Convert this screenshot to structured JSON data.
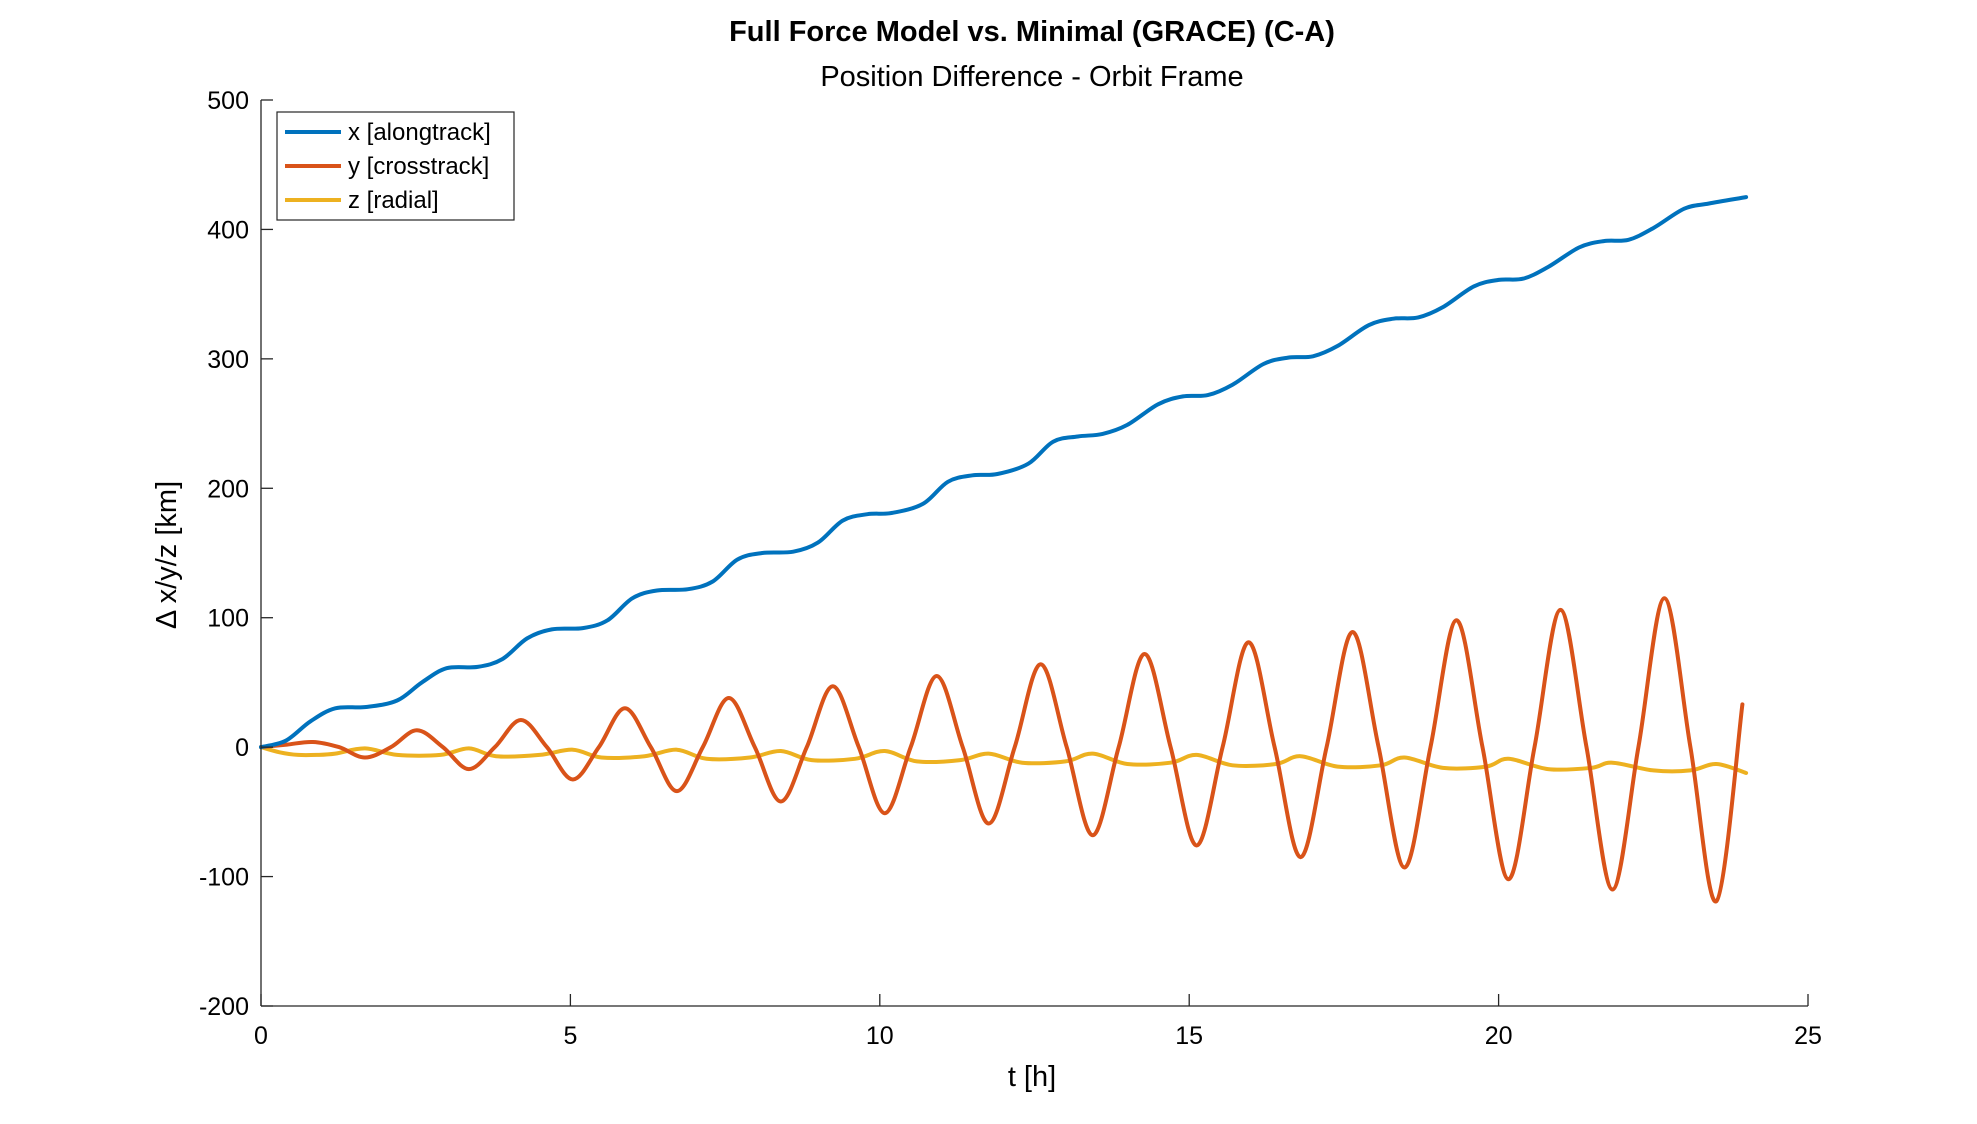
{
  "chart_data": {
    "type": "line",
    "title": "Full Force Model vs. Minimal (GRACE) (C-A)",
    "subtitle": "Position Difference - Orbit Frame",
    "xlabel": "t [h]",
    "ylabel": "Δ x/y/z [km]",
    "xlim": [
      0,
      25
    ],
    "ylim": [
      -200,
      500
    ],
    "xticks": [
      0,
      5,
      10,
      15,
      20,
      25
    ],
    "yticks": [
      -200,
      -100,
      0,
      100,
      200,
      300,
      400,
      500
    ],
    "grid": false,
    "legend_position": "top-left",
    "series": [
      {
        "name": "x [alongtrack]",
        "color": "#0072BD",
        "x": [
          0,
          0.4,
          0.8,
          1.2,
          1.7,
          2.2,
          2.6,
          3.0,
          3.5,
          3.9,
          4.3,
          4.7,
          5.2,
          5.6,
          6.0,
          6.4,
          6.9,
          7.3,
          7.7,
          8.1,
          8.6,
          9.0,
          9.4,
          9.8,
          10.2,
          10.7,
          11.1,
          11.5,
          11.9,
          12.4,
          12.8,
          13.2,
          13.6,
          14.0,
          14.5,
          14.9,
          15.3,
          15.7,
          16.2,
          16.6,
          17.0,
          17.4,
          17.9,
          18.3,
          18.7,
          19.1,
          19.6,
          20.0,
          20.4,
          20.8,
          21.3,
          21.7,
          22.1,
          22.5,
          23.0,
          23.4,
          24.0
        ],
        "y": [
          0,
          5,
          20,
          30,
          31,
          36,
          50,
          61,
          62,
          68,
          84,
          91,
          92,
          98,
          115,
          121,
          122,
          128,
          145,
          150,
          151,
          158,
          175,
          180,
          181,
          188,
          205,
          210,
          211,
          219,
          236,
          240,
          242,
          249,
          265,
          271,
          272,
          280,
          296,
          301,
          302,
          310,
          326,
          331,
          332,
          340,
          356,
          361,
          362,
          371,
          386,
          391,
          392,
          401,
          416,
          420,
          425
        ]
      },
      {
        "name": "y [crosstrack]",
        "color": "#D95319",
        "x": [
          0,
          0.42,
          0.84,
          1.26,
          1.68,
          2.1,
          2.52,
          2.94,
          3.36,
          3.78,
          4.2,
          4.62,
          5.04,
          5.46,
          5.88,
          6.3,
          6.72,
          7.14,
          7.56,
          7.98,
          8.4,
          8.82,
          9.24,
          9.66,
          10.08,
          10.5,
          10.92,
          11.34,
          11.76,
          12.18,
          12.6,
          13.02,
          13.44,
          13.86,
          14.28,
          14.7,
          15.12,
          15.54,
          15.96,
          16.38,
          16.8,
          17.22,
          17.64,
          18.06,
          18.48,
          18.9,
          19.32,
          19.74,
          20.16,
          20.58,
          21.0,
          21.42,
          21.84,
          22.26,
          22.68,
          23.1,
          23.52,
          23.94
        ],
        "y": [
          0,
          2,
          4,
          0,
          -8,
          0,
          13,
          0,
          -17,
          0,
          21,
          0,
          -25,
          0,
          30,
          0,
          -34,
          0,
          38,
          0,
          -42,
          0,
          47,
          0,
          -51,
          0,
          55,
          0,
          -59,
          0,
          64,
          0,
          -68,
          0,
          72,
          0,
          -76,
          0,
          81,
          0,
          -85,
          0,
          89,
          0,
          -93,
          0,
          98,
          0,
          -102,
          0,
          106,
          0,
          -110,
          0,
          115,
          0,
          -119,
          33
        ]
      },
      {
        "name": "z [radial]",
        "color": "#EDB120",
        "x": [
          0,
          0.3,
          0.6,
          0.9,
          1.2,
          1.68,
          2.2,
          2.9,
          3.36,
          3.8,
          4.5,
          5.04,
          5.5,
          6.2,
          6.72,
          7.2,
          7.9,
          8.4,
          8.9,
          9.6,
          10.08,
          10.6,
          11.3,
          11.76,
          12.3,
          13.0,
          13.44,
          14.0,
          14.7,
          15.12,
          15.7,
          16.4,
          16.8,
          17.4,
          18.1,
          18.48,
          19.1,
          19.8,
          20.16,
          20.8,
          21.5,
          21.84,
          22.5,
          23.1,
          23.52,
          24.0
        ],
        "y": [
          0,
          -4,
          -6,
          -6,
          -5,
          -1,
          -6,
          -6,
          -1,
          -7,
          -6,
          -2,
          -8,
          -7,
          -2,
          -9,
          -8,
          -3,
          -10,
          -9,
          -3,
          -11,
          -10,
          -5,
          -12,
          -11,
          -5,
          -13,
          -12,
          -6,
          -14,
          -13,
          -7,
          -15,
          -14,
          -8,
          -16,
          -15,
          -9,
          -17,
          -16,
          -12,
          -18,
          -18,
          -13,
          -20
        ]
      }
    ]
  }
}
